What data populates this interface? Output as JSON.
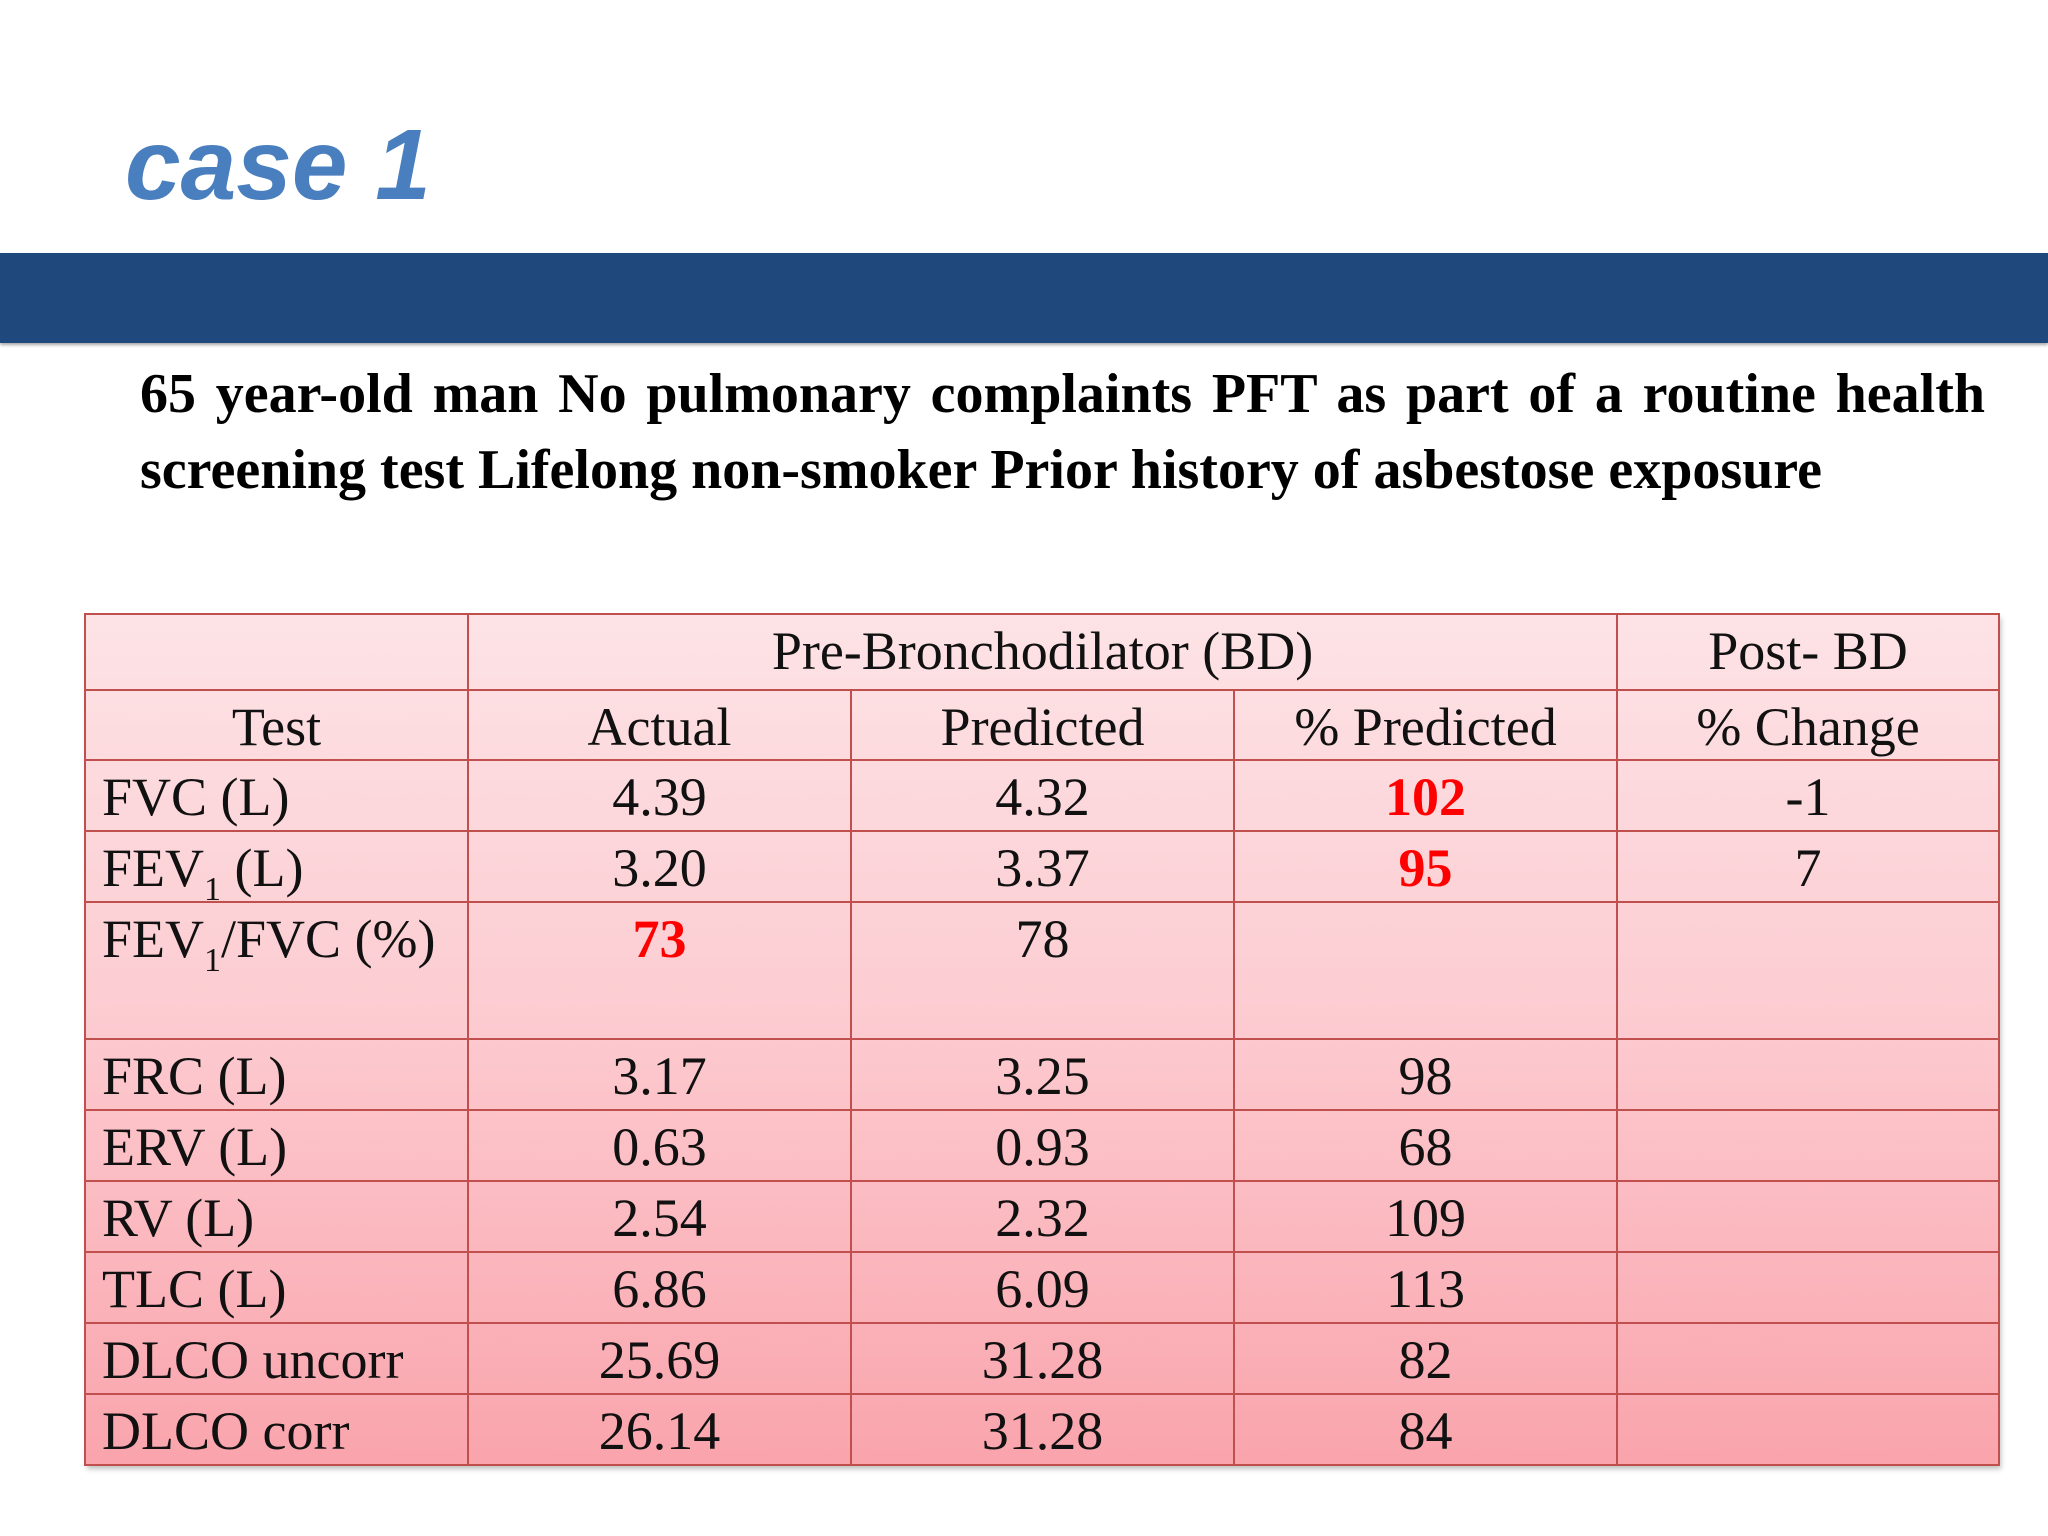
{
  "slide": {
    "title": "case 1",
    "description": "65 year-old man No pulmonary complaints PFT as part of a routine health screening test Lifelong non-smoker Prior history of asbestose exposure"
  },
  "table": {
    "group_headers": {
      "pre": "Pre-Bronchodilator (BD)",
      "post": "Post- BD"
    },
    "column_headers": {
      "test": "Test",
      "actual": "Actual",
      "predicted": "Predicted",
      "pct_predicted": "% Predicted",
      "pct_change": "% Change"
    },
    "rows": [
      {
        "test": "FVC (L)",
        "actual": "4.39",
        "predicted": "4.32",
        "pct_predicted": "102",
        "pct_change": "-1"
      },
      {
        "test_main": "FEV",
        "test_sub": "1",
        "test_rest": " (L)",
        "actual": "3.20",
        "predicted": "3.37",
        "pct_predicted": "95",
        "pct_change": "7"
      },
      {
        "test_main": "FEV",
        "test_sub": "1",
        "test_rest": "/FVC (%)",
        "actual": "73",
        "predicted": "78",
        "pct_predicted": "",
        "pct_change": ""
      },
      {
        "test": "FRC (L)",
        "actual": "3.17",
        "predicted": "3.25",
        "pct_predicted": "98",
        "pct_change": ""
      },
      {
        "test": "ERV (L)",
        "actual": "0.63",
        "predicted": "0.93",
        "pct_predicted": "68",
        "pct_change": ""
      },
      {
        "test": "RV (L)",
        "actual": "2.54",
        "predicted": "2.32",
        "pct_predicted": "109",
        "pct_change": ""
      },
      {
        "test": "TLC (L)",
        "actual": "6.86",
        "predicted": "6.09",
        "pct_predicted": "113",
        "pct_change": ""
      },
      {
        "test": "DLCO uncorr",
        "actual": "25.69",
        "predicted": "31.28",
        "pct_predicted": "82",
        "pct_change": ""
      },
      {
        "test": "DLCO corr",
        "actual": "26.14",
        "predicted": "31.28",
        "pct_predicted": "84",
        "pct_change": ""
      }
    ]
  },
  "colors": {
    "title": "#4a7fbf",
    "title_bar": "#1f497d",
    "table_border": "#c0504d",
    "highlight": "#ff0000"
  }
}
